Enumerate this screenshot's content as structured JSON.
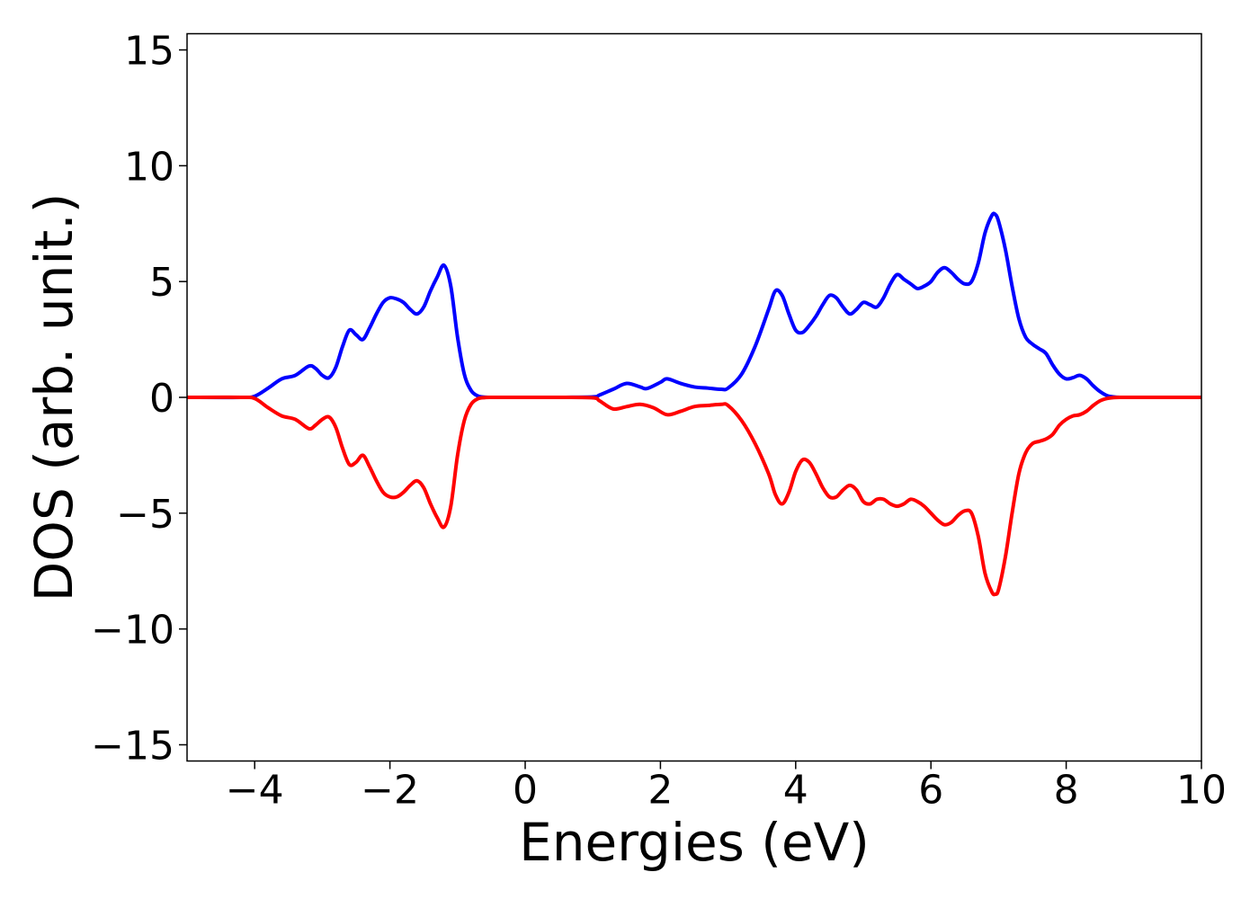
{
  "chart_data": {
    "type": "line",
    "title": "",
    "xlabel": "Energies (eV)",
    "ylabel": "DOS (arb. unit.)",
    "xlim": [
      -5,
      10
    ],
    "ylim": [
      -15.7,
      15.7
    ],
    "xticks": [
      {
        "value": -4,
        "label": "−4"
      },
      {
        "value": -2,
        "label": "−2"
      },
      {
        "value": 0,
        "label": "0"
      },
      {
        "value": 2,
        "label": "2"
      },
      {
        "value": 4,
        "label": "4"
      },
      {
        "value": 6,
        "label": "6"
      },
      {
        "value": 8,
        "label": "8"
      },
      {
        "value": 10,
        "label": "10"
      }
    ],
    "yticks": [
      {
        "value": 15,
        "label": "15"
      },
      {
        "value": 10,
        "label": "10"
      },
      {
        "value": 5,
        "label": "5"
      },
      {
        "value": 0,
        "label": "0"
      },
      {
        "value": -5,
        "label": "−5"
      },
      {
        "value": -10,
        "label": "−10"
      },
      {
        "value": -15,
        "label": "−15"
      }
    ],
    "grid": false,
    "legend": "none",
    "series": [
      {
        "color": "#0000ff",
        "x": [
          -5,
          -4.2,
          -4.0,
          -3.8,
          -3.6,
          -3.4,
          -3.2,
          -3.1,
          -3.0,
          -2.9,
          -2.8,
          -2.7,
          -2.6,
          -2.5,
          -2.4,
          -2.3,
          -2.2,
          -2.1,
          -2.0,
          -1.9,
          -1.8,
          -1.7,
          -1.6,
          -1.5,
          -1.4,
          -1.3,
          -1.2,
          -1.1,
          -1.0,
          -0.9,
          -0.8,
          -0.7,
          -0.6,
          -0.5,
          0,
          0.5,
          1.0,
          1.1,
          1.3,
          1.5,
          1.7,
          1.8,
          2.0,
          2.1,
          2.3,
          2.5,
          2.7,
          2.9,
          3.0,
          3.2,
          3.4,
          3.6,
          3.7,
          3.8,
          3.9,
          4.0,
          4.1,
          4.2,
          4.3,
          4.4,
          4.5,
          4.6,
          4.7,
          4.8,
          4.9,
          5.0,
          5.1,
          5.2,
          5.3,
          5.4,
          5.5,
          5.6,
          5.7,
          5.8,
          5.9,
          6.0,
          6.1,
          6.2,
          6.3,
          6.4,
          6.5,
          6.6,
          6.7,
          6.8,
          6.9,
          6.95,
          7.0,
          7.1,
          7.2,
          7.3,
          7.4,
          7.5,
          7.6,
          7.7,
          7.8,
          7.9,
          8.0,
          8.1,
          8.2,
          8.3,
          8.4,
          8.5,
          8.6,
          8.7,
          8.8,
          9.0,
          10.0
        ],
        "y": [
          0,
          0,
          0.05,
          0.4,
          0.8,
          0.95,
          1.35,
          1.25,
          0.95,
          0.85,
          1.3,
          2.2,
          2.9,
          2.7,
          2.5,
          3.0,
          3.6,
          4.1,
          4.3,
          4.25,
          4.1,
          3.8,
          3.6,
          3.9,
          4.6,
          5.2,
          5.7,
          4.8,
          2.6,
          1.0,
          0.3,
          0.06,
          0.01,
          0,
          0,
          0,
          0.02,
          0.1,
          0.35,
          0.6,
          0.45,
          0.38,
          0.65,
          0.8,
          0.6,
          0.45,
          0.4,
          0.35,
          0.4,
          1.0,
          2.2,
          3.8,
          4.6,
          4.4,
          3.6,
          2.9,
          2.8,
          3.1,
          3.5,
          4.0,
          4.4,
          4.3,
          3.9,
          3.6,
          3.8,
          4.1,
          4.0,
          3.9,
          4.3,
          4.9,
          5.3,
          5.1,
          4.9,
          4.7,
          4.8,
          5.0,
          5.4,
          5.6,
          5.4,
          5.1,
          4.9,
          5.0,
          5.8,
          7.1,
          7.85,
          7.9,
          7.6,
          6.4,
          4.8,
          3.4,
          2.6,
          2.3,
          2.1,
          1.9,
          1.4,
          1.0,
          0.8,
          0.85,
          0.95,
          0.8,
          0.5,
          0.25,
          0.08,
          0.02,
          0,
          0,
          0
        ]
      },
      {
        "color": "#ff0000",
        "x": [
          -5,
          -4.2,
          -4.0,
          -3.8,
          -3.6,
          -3.4,
          -3.2,
          -3.1,
          -3.0,
          -2.9,
          -2.8,
          -2.7,
          -2.6,
          -2.5,
          -2.4,
          -2.3,
          -2.2,
          -2.1,
          -2.0,
          -1.9,
          -1.8,
          -1.7,
          -1.6,
          -1.5,
          -1.4,
          -1.3,
          -1.2,
          -1.1,
          -1.0,
          -0.9,
          -0.8,
          -0.7,
          -0.6,
          -0.5,
          0,
          0.5,
          1.0,
          1.1,
          1.3,
          1.5,
          1.7,
          1.9,
          2.1,
          2.3,
          2.5,
          2.7,
          2.9,
          3.0,
          3.2,
          3.4,
          3.6,
          3.7,
          3.8,
          3.9,
          4.0,
          4.1,
          4.2,
          4.3,
          4.4,
          4.5,
          4.6,
          4.7,
          4.8,
          4.9,
          5.0,
          5.1,
          5.2,
          5.3,
          5.4,
          5.5,
          5.6,
          5.7,
          5.8,
          5.9,
          6.0,
          6.1,
          6.2,
          6.3,
          6.4,
          6.5,
          6.6,
          6.7,
          6.8,
          6.9,
          6.95,
          7.0,
          7.1,
          7.2,
          7.3,
          7.4,
          7.5,
          7.6,
          7.7,
          7.8,
          7.9,
          8.0,
          8.1,
          8.2,
          8.3,
          8.4,
          8.5,
          8.6,
          8.7,
          8.8,
          9.0,
          10.0
        ],
        "y": [
          0,
          0,
          -0.05,
          -0.45,
          -0.8,
          -0.95,
          -1.35,
          -1.2,
          -0.95,
          -0.85,
          -1.3,
          -2.2,
          -2.9,
          -2.8,
          -2.5,
          -3.0,
          -3.6,
          -4.1,
          -4.3,
          -4.3,
          -4.1,
          -3.8,
          -3.6,
          -3.9,
          -4.6,
          -5.2,
          -5.6,
          -4.7,
          -2.5,
          -1.0,
          -0.3,
          -0.06,
          -0.01,
          0,
          0,
          0,
          -0.02,
          -0.15,
          -0.5,
          -0.4,
          -0.3,
          -0.45,
          -0.75,
          -0.6,
          -0.4,
          -0.35,
          -0.3,
          -0.35,
          -1.0,
          -2.0,
          -3.3,
          -4.2,
          -4.6,
          -4.1,
          -3.2,
          -2.7,
          -2.8,
          -3.3,
          -3.9,
          -4.3,
          -4.3,
          -4.0,
          -3.8,
          -4.0,
          -4.5,
          -4.6,
          -4.4,
          -4.4,
          -4.6,
          -4.7,
          -4.6,
          -4.4,
          -4.5,
          -4.7,
          -5.0,
          -5.3,
          -5.5,
          -5.4,
          -5.1,
          -4.9,
          -5.0,
          -6.0,
          -7.6,
          -8.4,
          -8.5,
          -8.3,
          -6.9,
          -5.0,
          -3.3,
          -2.4,
          -2.0,
          -1.9,
          -1.8,
          -1.6,
          -1.2,
          -0.95,
          -0.8,
          -0.75,
          -0.6,
          -0.35,
          -0.15,
          -0.05,
          -0.01,
          0,
          0,
          0
        ]
      }
    ]
  }
}
